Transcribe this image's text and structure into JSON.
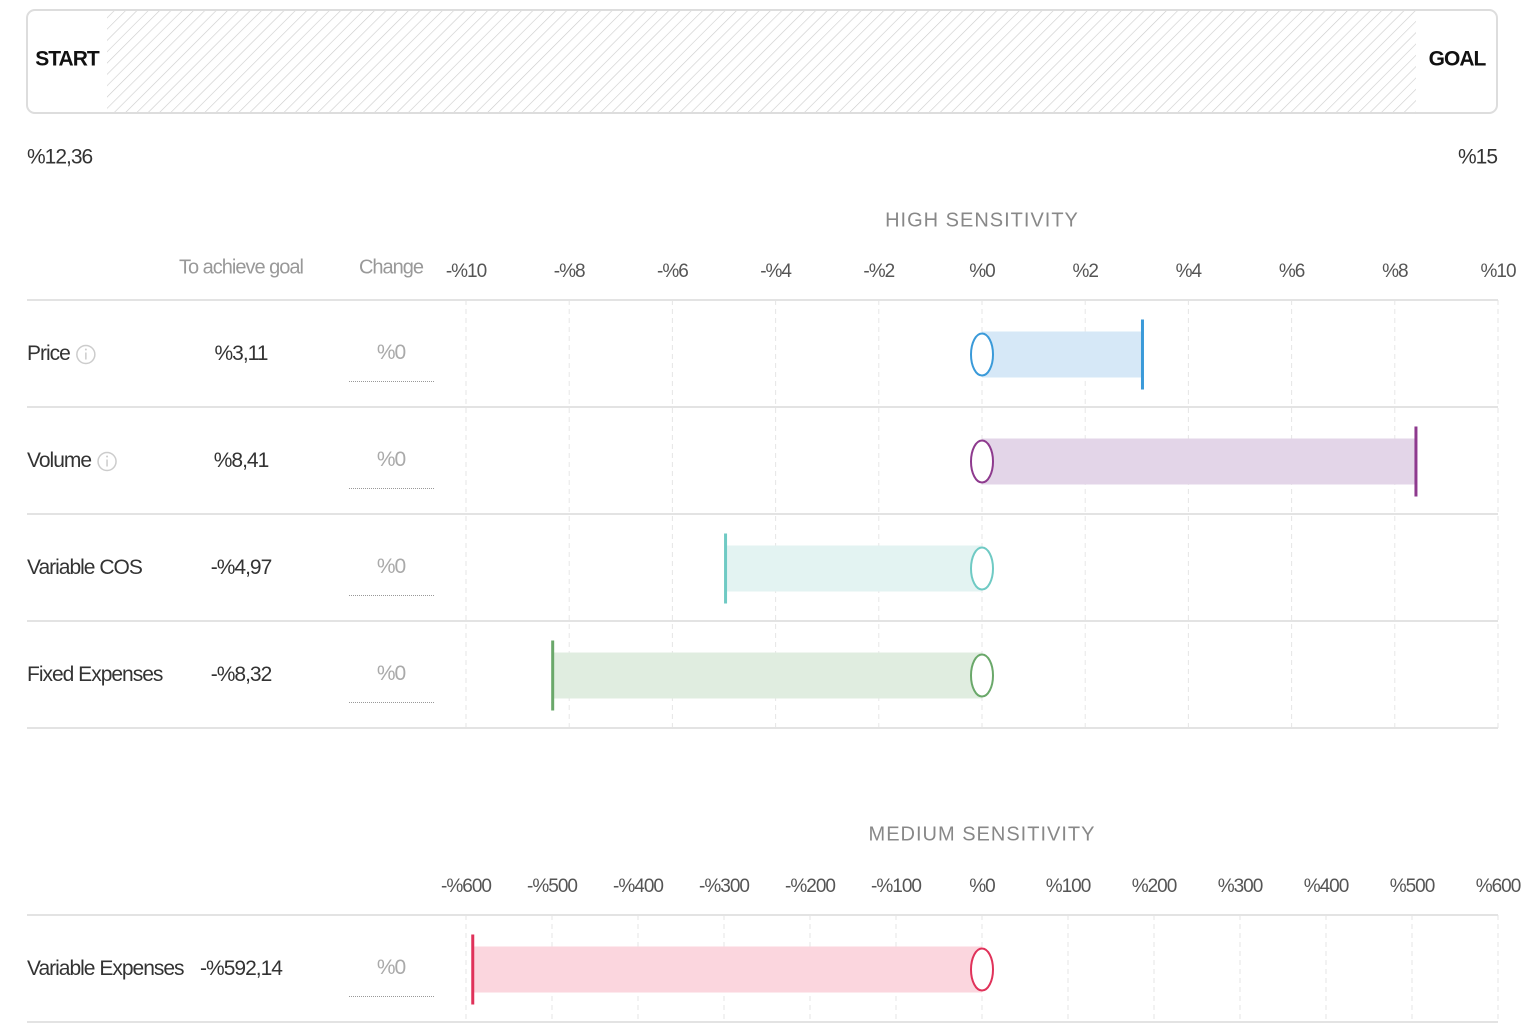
{
  "progress": {
    "start_label": "START",
    "goal_label": "GOAL",
    "start_value": "%12,36",
    "goal_value": "%15"
  },
  "columns": {
    "goal": "To achieve goal",
    "change": "Change"
  },
  "sections": [
    {
      "title": "HIGH SENSITIVITY",
      "xlim": [
        -10,
        10
      ],
      "xticks": [
        {
          "value": -10,
          "label": "-%10"
        },
        {
          "value": -8,
          "label": "-%8"
        },
        {
          "value": -6,
          "label": "-%6"
        },
        {
          "value": -4,
          "label": "-%4"
        },
        {
          "value": -2,
          "label": "-%2"
        },
        {
          "value": 0,
          "label": "%0"
        },
        {
          "value": 2,
          "label": "%2"
        },
        {
          "value": 4,
          "label": "%4"
        },
        {
          "value": 6,
          "label": "%6"
        },
        {
          "value": 8,
          "label": "%8"
        },
        {
          "value": 10,
          "label": "%10"
        }
      ],
      "rows": [
        {
          "name": "Price",
          "info": true,
          "goal": 3.11,
          "goal_label": "%3,11",
          "change": 0,
          "change_label": "%0",
          "color": "#3a9ad9",
          "fill": "#d6e8f7"
        },
        {
          "name": "Volume",
          "info": true,
          "goal": 8.41,
          "goal_label": "%8,41",
          "change": 0,
          "change_label": "%0",
          "color": "#8e3a8e",
          "fill": "#e3d5e8"
        },
        {
          "name": "Variable COS",
          "info": false,
          "goal": -4.97,
          "goal_label": "-%4,97",
          "change": 0,
          "change_label": "%0",
          "color": "#6fcac4",
          "fill": "#e3f3f2"
        },
        {
          "name": "Fixed Expenses",
          "info": false,
          "goal": -8.32,
          "goal_label": "-%8,32",
          "change": 0,
          "change_label": "%0",
          "color": "#6aa86a",
          "fill": "#e0ede0"
        }
      ]
    },
    {
      "title": "MEDIUM SENSITIVITY",
      "xlim": [
        -600,
        600
      ],
      "xticks": [
        {
          "value": -600,
          "label": "-%600"
        },
        {
          "value": -500,
          "label": "-%500"
        },
        {
          "value": -400,
          "label": "-%400"
        },
        {
          "value": -300,
          "label": "-%300"
        },
        {
          "value": -200,
          "label": "-%200"
        },
        {
          "value": -100,
          "label": "-%100"
        },
        {
          "value": 0,
          "label": "%0"
        },
        {
          "value": 100,
          "label": "%100"
        },
        {
          "value": 200,
          "label": "%200"
        },
        {
          "value": 300,
          "label": "%300"
        },
        {
          "value": 400,
          "label": "%400"
        },
        {
          "value": 500,
          "label": "%500"
        },
        {
          "value": 600,
          "label": "%600"
        }
      ],
      "rows": [
        {
          "name": "Variable Expenses",
          "info": false,
          "goal": -592.14,
          "goal_label": "-%592,14",
          "change": 0,
          "change_label": "%0",
          "color": "#e0325a",
          "fill": "#fbd6de"
        }
      ]
    }
  ]
}
